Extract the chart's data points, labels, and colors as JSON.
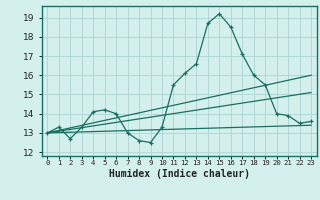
{
  "xlabel": "Humidex (Indice chaleur)",
  "bg_color": "#d4f0ec",
  "grid_color": "#b0d8d4",
  "line_color": "#1a6e60",
  "spine_color": "#1a6e60",
  "ylim": [
    11.8,
    19.6
  ],
  "xlim": [
    -0.5,
    23.5
  ],
  "yticks": [
    12,
    13,
    14,
    15,
    16,
    17,
    18,
    19
  ],
  "xticks": [
    0,
    1,
    2,
    3,
    4,
    5,
    6,
    7,
    8,
    9,
    10,
    11,
    12,
    13,
    14,
    15,
    16,
    17,
    18,
    19,
    20,
    21,
    22,
    23
  ],
  "xtick_labels": [
    "0",
    "1",
    "2",
    "3",
    "4",
    "5",
    "6",
    "7",
    "8",
    "9",
    "10",
    "11",
    "12",
    "13",
    "14",
    "15",
    "16",
    "17",
    "18",
    "19",
    "20",
    "21",
    "22",
    "23"
  ],
  "series1_x": [
    0,
    1,
    2,
    3,
    4,
    5,
    6,
    7,
    8,
    9,
    10,
    11,
    12,
    13,
    14,
    15,
    16,
    17,
    18,
    19,
    20,
    21,
    22,
    23
  ],
  "series1_y": [
    13.0,
    13.3,
    12.7,
    13.3,
    14.1,
    14.2,
    14.0,
    13.0,
    12.6,
    12.5,
    13.3,
    15.5,
    16.1,
    16.6,
    18.7,
    19.2,
    18.5,
    17.1,
    16.0,
    15.5,
    14.0,
    13.9,
    13.5,
    13.6
  ],
  "trend1_x": [
    0,
    23
  ],
  "trend1_y": [
    13.0,
    13.4
  ],
  "trend2_x": [
    0,
    23
  ],
  "trend2_y": [
    13.0,
    16.0
  ],
  "trend3_x": [
    0,
    23
  ],
  "trend3_y": [
    13.0,
    15.1
  ]
}
